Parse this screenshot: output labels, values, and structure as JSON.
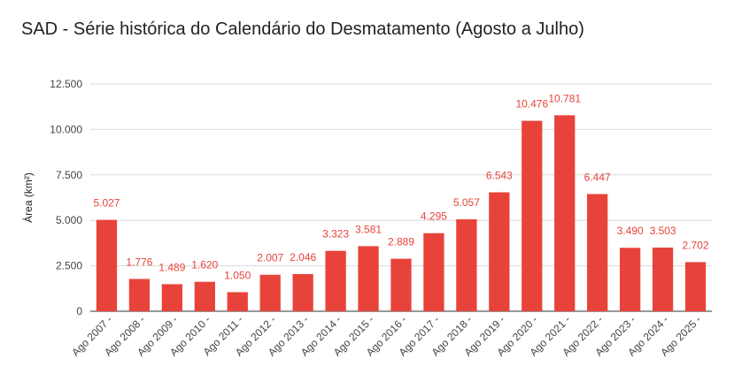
{
  "chart_data": {
    "type": "bar",
    "title": "SAD - Série histórica do Calendário do Desmatamento (Agosto a Julho)",
    "xlabel": "",
    "ylabel": "Área (km²)",
    "ylim": [
      0,
      12500
    ],
    "yticks": [
      0,
      2500,
      5000,
      7500,
      10000,
      12500
    ],
    "ytick_labels": [
      "0",
      "2.500",
      "5.000",
      "7.500",
      "10.000",
      "12.500"
    ],
    "grid": true,
    "legend": "none",
    "bar_color": "#e8433a",
    "label_color": "#e8433a",
    "categories": [
      "Ago 2007 -",
      "Ago 2008 -",
      "Ago 2009 -",
      "Ago 2010 -",
      "Ago 2011 -",
      "Ago 2012 -",
      "Ago 2013 -",
      "Ago 2014 -",
      "Ago 2015 -",
      "Ago 2016 -",
      "Ago 2017 -",
      "Ago 2018 -",
      "Ago 2019 -",
      "Ago 2020 -",
      "Ago 2021 -",
      "Ago 2022 -",
      "Ago 2023 -",
      "Ago 2024 -",
      "Ago 2025 -"
    ],
    "values": [
      5027,
      1776,
      1489,
      1620,
      1050,
      2007,
      2046,
      3323,
      3581,
      2889,
      4295,
      5057,
      6543,
      10476,
      10781,
      6447,
      3490,
      3503,
      2702
    ],
    "value_labels": [
      "5.027",
      "1.776",
      "1.489",
      "1.620",
      "1.050",
      "2.007",
      "2.046",
      "3.323",
      "3.581",
      "2.889",
      "4.295",
      "5.057",
      "6.543",
      "10.476",
      "10.781",
      "6.447",
      "3.490",
      "3.503",
      "2.702"
    ]
  }
}
